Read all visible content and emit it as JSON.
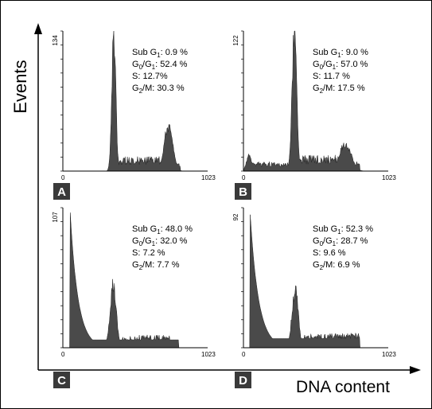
{
  "chart_data": {
    "type": "histogram",
    "ylabel": "Events",
    "xlabel": "DNA content",
    "panels": [
      {
        "label": "A",
        "x_tick_labels": [
          "0",
          "1023"
        ],
        "ymax_label": "134",
        "xlim": [
          0,
          1023
        ],
        "ylim": [
          0,
          134
        ],
        "stats": [
          {
            "name": "Sub G",
            "sub": "1",
            "sep": ":",
            "value": "0.9 %"
          },
          {
            "name": "G",
            "sub": "0",
            "mid": "/G",
            "sub2": "1",
            "sep": ":",
            "value": "52.4 %"
          },
          {
            "name": "S",
            "sep": ":",
            "value": "12.7%"
          },
          {
            "name": "G",
            "sub": "2",
            "mid": "/M",
            "sep": ":",
            "value": "30.3 %"
          }
        ],
        "peaks": [
          {
            "center": 360,
            "width": 14,
            "height": 134
          },
          {
            "center": 745,
            "width": 30,
            "height": 43
          }
        ],
        "baseline": [
          {
            "from": 0,
            "to": 340,
            "level": 0
          },
          {
            "from": 375,
            "to": 700,
            "level": 10
          },
          {
            "from": 790,
            "to": 830,
            "level": 6
          }
        ]
      },
      {
        "label": "B",
        "x_tick_labels": [
          "0",
          "1023"
        ],
        "ymax_label": "122",
        "xlim": [
          0,
          1023
        ],
        "ylim": [
          0,
          122
        ],
        "stats": [
          {
            "name": "Sub G",
            "sub": "1",
            "sep": ":",
            "value": "9.0 %"
          },
          {
            "name": "G",
            "sub": "0",
            "mid": "/G",
            "sub2": "1",
            "sep": ":",
            "value": "57.0 %"
          },
          {
            "name": "S",
            "sep": ":",
            "value": "11.7 %"
          },
          {
            "name": "G",
            "sub": "2",
            "mid": "/M",
            "sep": ":",
            "value": "17.5 %"
          }
        ],
        "peaks": [
          {
            "center": 40,
            "width": 18,
            "height": 14
          },
          {
            "center": 360,
            "width": 16,
            "height": 122
          },
          {
            "center": 720,
            "width": 40,
            "height": 24
          }
        ],
        "baseline": [
          {
            "from": 20,
            "to": 330,
            "level": 6
          },
          {
            "from": 385,
            "to": 680,
            "level": 10
          },
          {
            "from": 760,
            "to": 820,
            "level": 6
          }
        ]
      },
      {
        "label": "C",
        "x_tick_labels": [
          "0",
          "1023"
        ],
        "ymax_label": "107",
        "xlim": [
          0,
          1023
        ],
        "ylim": [
          0,
          107
        ],
        "stats": [
          {
            "name": "Sub G",
            "sub": "1",
            "sep": ":",
            "value": "48.0 %"
          },
          {
            "name": "G",
            "sub": "0",
            "mid": "/G",
            "sub2": "1",
            "sep": ":",
            "value": "32.0 %"
          },
          {
            "name": "S",
            "sep": ":",
            "value": "7.2 %"
          },
          {
            "name": "G",
            "sub": "2",
            "mid": "/M",
            "sep": ":",
            "value": "7.7 %"
          }
        ],
        "decay": {
          "start": 50,
          "peak": 107,
          "rate": 0.018,
          "floor": 6
        },
        "peaks": [
          {
            "center": 355,
            "width": 22,
            "height": 48
          }
        ],
        "baseline": [
          {
            "from": 420,
            "to": 760,
            "level": 7
          }
        ]
      },
      {
        "label": "D",
        "x_tick_labels": [
          "0",
          "1023"
        ],
        "ymax_label": "92",
        "xlim": [
          0,
          1023
        ],
        "ylim": [
          0,
          92
        ],
        "stats": [
          {
            "name": "Sub G",
            "sub": "1",
            "sep": ":",
            "value": "52.3 %"
          },
          {
            "name": "G",
            "sub": "0",
            "mid": "/G",
            "sub2": "1",
            "sep": ":",
            "value": "28.7 %"
          },
          {
            "name": "S",
            "sep": ":",
            "value": "9.6 %"
          },
          {
            "name": "G",
            "sub": "2",
            "mid": "/M",
            "sep": ":",
            "value": "6.9 %"
          }
        ],
        "decay": {
          "start": 45,
          "peak": 92,
          "rate": 0.017,
          "floor": 6
        },
        "peaks": [
          {
            "center": 365,
            "width": 22,
            "height": 38
          }
        ],
        "baseline": [
          {
            "from": 430,
            "to": 820,
            "level": 7
          }
        ]
      }
    ]
  },
  "colors": {
    "fill": "#4a4a4a",
    "badge": "#3a3a3a",
    "axis": "#000000"
  }
}
